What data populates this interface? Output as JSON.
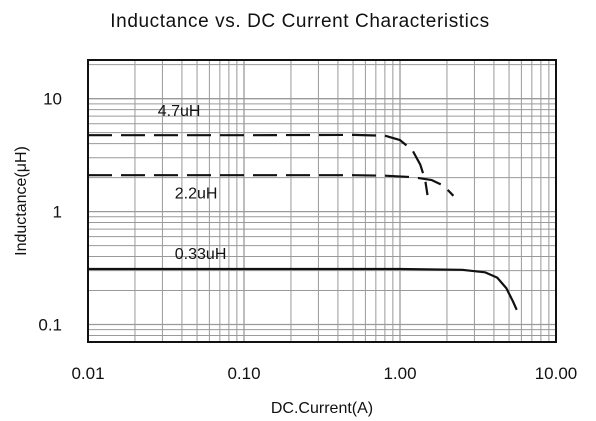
{
  "chart_data": {
    "type": "line",
    "title": "Inductance vs. DC Current Characteristics",
    "xlabel": "DC.Current(A)",
    "ylabel": "Inductance(μH)",
    "x_scale": "log",
    "y_scale": "log",
    "xlim": [
      0.01,
      10
    ],
    "ylim": [
      0.07,
      22
    ],
    "grid": true,
    "x_ticks": [
      {
        "value": 0.01,
        "label": "0.01"
      },
      {
        "value": 0.1,
        "label": "0.10"
      },
      {
        "value": 1,
        "label": "1.00"
      },
      {
        "value": 10,
        "label": "10.00"
      }
    ],
    "y_ticks": [
      {
        "value": 0.1,
        "label": "0.1"
      },
      {
        "value": 1,
        "label": "1"
      },
      {
        "value": 10,
        "label": "10"
      }
    ],
    "series": [
      {
        "name": "4.7uH",
        "style": "dashed",
        "label_at": {
          "x": 0.028,
          "y": 7.0
        },
        "points": [
          [
            0.01,
            4.75
          ],
          [
            0.1,
            4.75
          ],
          [
            0.5,
            4.78
          ],
          [
            0.8,
            4.7
          ],
          [
            1.0,
            4.3
          ],
          [
            1.2,
            3.5
          ],
          [
            1.35,
            2.6
          ],
          [
            1.45,
            1.9
          ],
          [
            1.5,
            1.4
          ]
        ]
      },
      {
        "name": "2.2uH",
        "style": "dashed",
        "label_at": {
          "x": 0.036,
          "y": 1.3
        },
        "points": [
          [
            0.01,
            2.1
          ],
          [
            0.1,
            2.1
          ],
          [
            0.5,
            2.1
          ],
          [
            0.8,
            2.08
          ],
          [
            1.2,
            2.02
          ],
          [
            1.6,
            1.9
          ],
          [
            1.9,
            1.7
          ],
          [
            2.2,
            1.38
          ]
        ]
      },
      {
        "name": "0.33uH",
        "style": "solid",
        "label_at": {
          "x": 0.036,
          "y": 0.38
        },
        "points": [
          [
            0.01,
            0.31
          ],
          [
            0.1,
            0.31
          ],
          [
            1,
            0.31
          ],
          [
            2.5,
            0.305
          ],
          [
            3.5,
            0.29
          ],
          [
            4.2,
            0.26
          ],
          [
            4.8,
            0.21
          ],
          [
            5.3,
            0.16
          ],
          [
            5.6,
            0.135
          ]
        ]
      }
    ],
    "line_color": "#111111",
    "grid_color": "#9a9a9a"
  }
}
